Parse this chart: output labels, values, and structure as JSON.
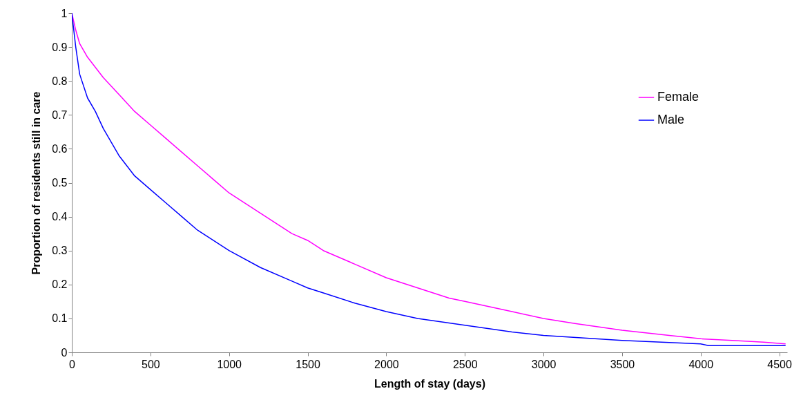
{
  "chart_data": {
    "type": "line",
    "xlabel": "Length of stay (days)",
    "ylabel": "Proportion of residents still in care",
    "xlim": [
      0,
      4550
    ],
    "xticks": [
      0,
      500,
      1000,
      1500,
      2000,
      2500,
      3000,
      3500,
      4000,
      4500
    ],
    "ylim": [
      0,
      1
    ],
    "yticks": [
      0,
      0.1,
      0.2,
      0.3,
      0.4,
      0.5,
      0.6,
      0.7,
      0.8,
      0.9,
      1
    ],
    "grid": false,
    "legend": "top right",
    "marker": "none",
    "series": [
      {
        "name": "Female",
        "color": "#ff00ff",
        "x": [
          0,
          25,
          50,
          100,
          150,
          200,
          300,
          400,
          500,
          600,
          700,
          800,
          900,
          1000,
          1200,
          1400,
          1500,
          1600,
          1800,
          2000,
          2200,
          2400,
          2500,
          2800,
          3000,
          3200,
          3500,
          3800,
          4000,
          4200,
          4400,
          4540
        ],
        "values": [
          1,
          0.95,
          0.91,
          0.87,
          0.84,
          0.81,
          0.76,
          0.71,
          0.67,
          0.63,
          0.59,
          0.55,
          0.51,
          0.47,
          0.41,
          0.35,
          0.33,
          0.3,
          0.26,
          0.22,
          0.19,
          0.16,
          0.15,
          0.12,
          0.1,
          0.085,
          0.065,
          0.05,
          0.04,
          0.035,
          0.03,
          0.025
        ]
      },
      {
        "name": "Male",
        "color": "#0000ff",
        "x": [
          0,
          25,
          50,
          100,
          150,
          200,
          300,
          400,
          500,
          600,
          700,
          800,
          900,
          1000,
          1200,
          1400,
          1500,
          1600,
          1800,
          2000,
          2200,
          2500,
          2800,
          3000,
          3500,
          4000,
          4050,
          4540
        ],
        "values": [
          1,
          0.9,
          0.82,
          0.75,
          0.71,
          0.66,
          0.58,
          0.52,
          0.48,
          0.44,
          0.4,
          0.36,
          0.33,
          0.3,
          0.25,
          0.21,
          0.19,
          0.175,
          0.145,
          0.12,
          0.1,
          0.08,
          0.06,
          0.05,
          0.035,
          0.025,
          0.02,
          0.02
        ]
      }
    ]
  }
}
